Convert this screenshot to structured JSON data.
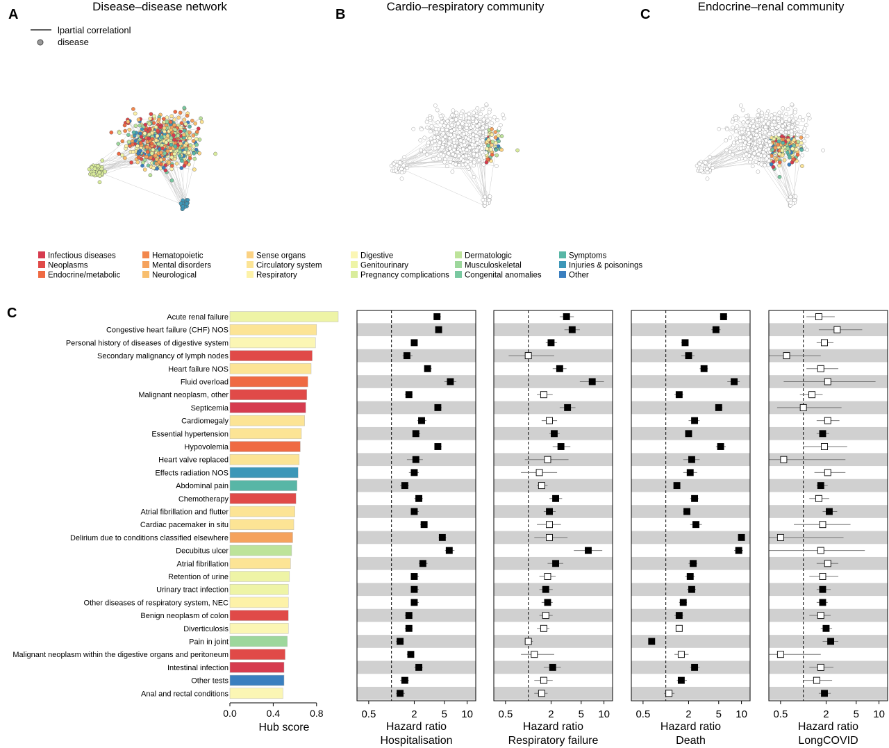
{
  "panels": {
    "a": {
      "letter": "A",
      "title": "Disease–disease network"
    },
    "b": {
      "letter": "B",
      "title": "Cardio–respiratory community"
    },
    "c": {
      "letter": "C",
      "title": "Endocrine–renal community"
    },
    "d": {
      "letter": "C"
    }
  },
  "network_legend": {
    "edge": "lpartial correlationl",
    "node": "disease"
  },
  "categories": [
    {
      "name": "Infectious diseases",
      "color": "#d63c4f"
    },
    {
      "name": "Neoplasms",
      "color": "#e04a48"
    },
    {
      "name": "Endocrine/metabolic",
      "color": "#ef6a43"
    },
    {
      "name": "Hematopoietic",
      "color": "#f2874c"
    },
    {
      "name": "Mental disorders",
      "color": "#f5a25d"
    },
    {
      "name": "Neurological",
      "color": "#f8be6e"
    },
    {
      "name": "Sense organs",
      "color": "#fbd283"
    },
    {
      "name": "Circulatory system",
      "color": "#fce495"
    },
    {
      "name": "Respiratory",
      "color": "#fdf2a8"
    },
    {
      "name": "Digestive",
      "color": "#fbf6b4"
    },
    {
      "name": "Genitourinary",
      "color": "#eef4a6"
    },
    {
      "name": "Pregnancy complications",
      "color": "#d9ec9b"
    },
    {
      "name": "Dermatologic",
      "color": "#bde39a"
    },
    {
      "name": "Musculoskeletal",
      "color": "#9dd79c"
    },
    {
      "name": "Congenital anomalies",
      "color": "#79c8a0"
    },
    {
      "name": "Symptoms",
      "color": "#58b6a6"
    },
    {
      "name": "Injuries & poisonings",
      "color": "#3d97b8"
    },
    {
      "name": "Other",
      "color": "#3a7fbf"
    }
  ],
  "hub_labels": {
    "xlabel": "Hub score",
    "ticks": [
      "0.0",
      "0.4",
      "0.8"
    ]
  },
  "forest_tick_labels": [
    "0.5",
    "2",
    "5",
    "10"
  ],
  "chart_data": {
    "type": "bar+forest",
    "hub": {
      "xlim": [
        0,
        1.0
      ],
      "conditions": [
        {
          "label": "Acute renal failure",
          "value": 1.0,
          "color": "#eef4a6"
        },
        {
          "label": "Congestive heart failure (CHF) NOS",
          "value": 0.8,
          "color": "#fce495"
        },
        {
          "label": "Personal history of diseases of digestive system",
          "value": 0.79,
          "color": "#fbf6b4"
        },
        {
          "label": "Secondary malignancy of lymph nodes",
          "value": 0.76,
          "color": "#e04a48"
        },
        {
          "label": "Heart failure NOS",
          "value": 0.75,
          "color": "#fce495"
        },
        {
          "label": "Fluid overload",
          "value": 0.72,
          "color": "#ef6a43"
        },
        {
          "label": "Malignant neoplasm, other",
          "value": 0.71,
          "color": "#e04a48"
        },
        {
          "label": "Septicemia",
          "value": 0.7,
          "color": "#d63c4f"
        },
        {
          "label": "Cardiomegaly",
          "value": 0.69,
          "color": "#fce495"
        },
        {
          "label": "Essential hypertension",
          "value": 0.66,
          "color": "#fce495"
        },
        {
          "label": "Hypovolemia",
          "value": 0.65,
          "color": "#ef6a43"
        },
        {
          "label": "Heart valve replaced",
          "value": 0.64,
          "color": "#fce495"
        },
        {
          "label": "Effects radiation NOS",
          "value": 0.63,
          "color": "#3d97b8"
        },
        {
          "label": "Abdominal pain",
          "value": 0.62,
          "color": "#58b6a6"
        },
        {
          "label": "Chemotherapy",
          "value": 0.61,
          "color": "#e04a48"
        },
        {
          "label": "Atrial fibrillation and flutter",
          "value": 0.6,
          "color": "#fce495"
        },
        {
          "label": "Cardiac pacemaker in situ",
          "value": 0.59,
          "color": "#fce495"
        },
        {
          "label": "Delirium due to conditions classified elsewhere",
          "value": 0.58,
          "color": "#f5a25d"
        },
        {
          "label": "Decubitus ulcer",
          "value": 0.57,
          "color": "#bde39a"
        },
        {
          "label": "Atrial fibrillation",
          "value": 0.56,
          "color": "#fce495"
        },
        {
          "label": "Retention of urine",
          "value": 0.55,
          "color": "#eef4a6"
        },
        {
          "label": "Urinary tract infection",
          "value": 0.54,
          "color": "#eef4a6"
        },
        {
          "label": "Other diseases of respiratory system, NEC",
          "value": 0.54,
          "color": "#fdf2a8"
        },
        {
          "label": "Benign neoplasm of colon",
          "value": 0.54,
          "color": "#e04a48"
        },
        {
          "label": "Diverticulosis",
          "value": 0.54,
          "color": "#fbf6b4"
        },
        {
          "label": "Pain in joint",
          "value": 0.53,
          "color": "#9dd79c"
        },
        {
          "label": "Malignant neoplasm within the digestive organs and peritoneum",
          "value": 0.51,
          "color": "#e04a48"
        },
        {
          "label": "Intestinal infection",
          "value": 0.5,
          "color": "#d63c4f"
        },
        {
          "label": "Other tests",
          "value": 0.5,
          "color": "#3a7fbf"
        },
        {
          "label": "Anal and rectal conditions",
          "value": 0.49,
          "color": "#fbf6b4"
        }
      ]
    },
    "forest": {
      "scale": "log",
      "xlim": [
        0.35,
        13
      ],
      "reference": 1,
      "panels": [
        {
          "xlabel": "Hazard ratio",
          "outcome": "Hospitalisation",
          "hr": [
            4.0,
            4.2,
            2.0,
            1.6,
            3.0,
            6.0,
            1.7,
            4.1,
            2.5,
            2.1,
            4.1,
            2.1,
            2.0,
            1.5,
            2.3,
            2.0,
            2.7,
            4.7,
            5.8,
            2.6,
            2.0,
            2.0,
            2.0,
            1.7,
            1.7,
            1.3,
            1.8,
            2.3,
            1.5,
            1.3
          ],
          "lo": [
            3.6,
            3.8,
            1.8,
            1.4,
            2.7,
            5.0,
            1.5,
            3.7,
            2.2,
            1.9,
            3.7,
            1.6,
            1.7,
            1.3,
            2.0,
            1.8,
            2.4,
            4.2,
            5.1,
            2.3,
            1.8,
            1.8,
            1.8,
            1.5,
            1.5,
            1.15,
            1.6,
            2.0,
            1.3,
            1.15
          ],
          "hi": [
            4.5,
            4.6,
            2.2,
            1.9,
            3.4,
            7.2,
            1.9,
            4.6,
            2.9,
            2.4,
            4.6,
            2.6,
            2.3,
            1.7,
            2.6,
            2.3,
            3.0,
            5.3,
            6.8,
            3.0,
            2.3,
            2.3,
            2.3,
            1.9,
            1.9,
            1.45,
            2.0,
            2.6,
            1.7,
            1.5
          ],
          "filled": [
            true,
            true,
            true,
            true,
            true,
            true,
            true,
            true,
            true,
            true,
            true,
            true,
            true,
            true,
            true,
            true,
            true,
            true,
            true,
            true,
            true,
            true,
            true,
            true,
            true,
            true,
            true,
            true,
            true,
            true
          ]
        },
        {
          "xlabel": "Hazard ratio",
          "outcome": "Respiratory failure",
          "hr": [
            3.2,
            3.8,
            2.0,
            1.0,
            2.6,
            7.0,
            1.6,
            3.3,
            1.9,
            2.2,
            2.7,
            1.8,
            1.4,
            1.5,
            2.3,
            1.9,
            1.9,
            1.9,
            6.2,
            2.3,
            1.8,
            1.7,
            1.8,
            1.7,
            1.6,
            1.0,
            1.2,
            2.1,
            1.6,
            1.5
          ],
          "lo": [
            2.6,
            3.0,
            1.7,
            0.55,
            2.1,
            4.8,
            1.3,
            2.6,
            1.5,
            1.9,
            2.1,
            0.9,
            0.8,
            1.3,
            1.9,
            1.6,
            1.3,
            1.2,
            4.0,
            1.8,
            1.4,
            1.4,
            1.5,
            1.4,
            1.3,
            0.9,
            0.8,
            1.6,
            1.2,
            1.2
          ],
          "hi": [
            4.0,
            4.8,
            2.4,
            2.2,
            3.2,
            10.0,
            2.1,
            4.2,
            2.4,
            2.6,
            3.6,
            3.4,
            2.4,
            1.8,
            2.8,
            2.3,
            2.7,
            3.3,
            9.5,
            2.9,
            2.3,
            2.1,
            2.1,
            2.1,
            1.9,
            1.15,
            2.2,
            2.7,
            2.1,
            1.8
          ],
          "filled": [
            true,
            true,
            true,
            false,
            true,
            true,
            false,
            true,
            false,
            true,
            true,
            false,
            false,
            false,
            true,
            true,
            false,
            false,
            true,
            true,
            false,
            true,
            true,
            false,
            false,
            false,
            false,
            true,
            false,
            false
          ]
        },
        {
          "xlabel": "Hazard ratio",
          "outcome": "Death",
          "hr": [
            5.8,
            4.6,
            1.8,
            2.0,
            3.2,
            8.0,
            1.5,
            5.0,
            2.4,
            2.0,
            5.3,
            2.2,
            2.1,
            1.4,
            2.4,
            1.9,
            2.5,
            10.0,
            9.2,
            2.3,
            2.1,
            2.2,
            1.7,
            1.5,
            1.5,
            0.65,
            1.6,
            2.4,
            1.6,
            1.1
          ],
          "lo": [
            5.2,
            4.0,
            1.6,
            1.6,
            2.8,
            6.5,
            1.3,
            4.5,
            2.0,
            1.8,
            4.6,
            1.7,
            1.7,
            1.3,
            2.1,
            1.7,
            2.1,
            9.0,
            8.0,
            2.0,
            1.8,
            1.9,
            1.5,
            1.3,
            1.35,
            0.6,
            1.3,
            2.1,
            1.4,
            0.95
          ],
          "hi": [
            6.5,
            5.3,
            2.0,
            2.4,
            3.6,
            9.5,
            1.7,
            5.6,
            2.8,
            2.2,
            6.2,
            2.8,
            2.6,
            1.55,
            2.7,
            2.1,
            3.0,
            11.0,
            10.5,
            2.6,
            2.4,
            2.5,
            1.9,
            1.7,
            1.65,
            0.7,
            2.0,
            2.8,
            1.9,
            1.3
          ],
          "filled": [
            true,
            true,
            true,
            true,
            true,
            true,
            true,
            true,
            true,
            true,
            true,
            true,
            true,
            true,
            true,
            true,
            true,
            true,
            true,
            true,
            true,
            true,
            true,
            true,
            false,
            true,
            false,
            true,
            true,
            false
          ]
        },
        {
          "xlabel": "Hazard ratio",
          "outcome": "LongCOVID",
          "hr": [
            1.6,
            2.8,
            1.9,
            0.6,
            1.7,
            2.1,
            1.3,
            1.0,
            2.1,
            1.8,
            1.9,
            0.55,
            2.1,
            1.7,
            1.6,
            2.2,
            1.8,
            0.5,
            1.7,
            2.1,
            1.8,
            1.8,
            1.8,
            1.7,
            2.0,
            2.3,
            0.5,
            1.7,
            1.5,
            1.9
          ],
          "lo": [
            1.1,
            1.6,
            1.5,
            0.35,
            1.1,
            0.55,
            0.9,
            0.45,
            1.5,
            1.5,
            1.0,
            0.35,
            1.4,
            1.5,
            1.2,
            1.8,
            0.75,
            0.35,
            0.35,
            1.5,
            1.2,
            1.5,
            1.5,
            1.2,
            1.7,
            1.8,
            0.35,
            1.2,
            1.0,
            1.6
          ],
          "hi": [
            2.6,
            6.0,
            2.5,
            1.7,
            2.9,
            9.0,
            1.8,
            3.2,
            3.0,
            2.2,
            3.8,
            3.6,
            3.6,
            2.1,
            2.2,
            2.8,
            4.2,
            3.4,
            6.5,
            2.9,
            2.9,
            2.3,
            2.1,
            2.3,
            2.4,
            2.9,
            1.7,
            2.5,
            2.4,
            2.3
          ],
          "filled": [
            false,
            false,
            false,
            false,
            false,
            false,
            false,
            false,
            false,
            true,
            false,
            false,
            false,
            true,
            false,
            true,
            false,
            false,
            false,
            false,
            false,
            true,
            true,
            false,
            true,
            true,
            false,
            false,
            false,
            true
          ]
        }
      ]
    }
  }
}
